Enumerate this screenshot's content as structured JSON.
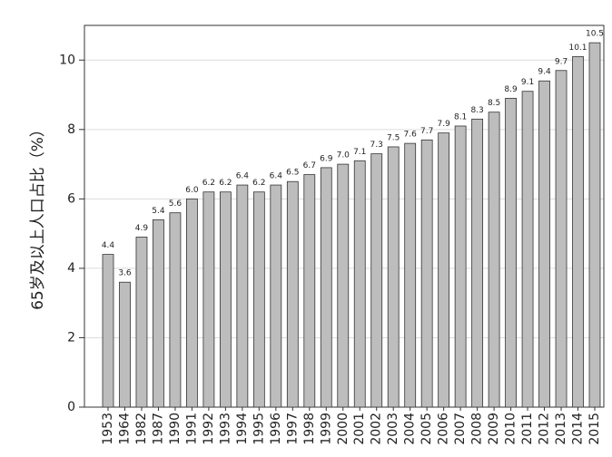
{
  "chart_data": {
    "type": "bar",
    "y_label": "65岁及以上人口占比（%）",
    "categories": [
      "1953",
      "1964",
      "1982",
      "1987",
      "1990",
      "1991",
      "1992",
      "1993",
      "1994",
      "1995",
      "1996",
      "1997",
      "1998",
      "1999",
      "2000",
      "2001",
      "2002",
      "2003",
      "2004",
      "2005",
      "2006",
      "2007",
      "2008",
      "2009",
      "2010",
      "2011",
      "2012",
      "2013",
      "2014",
      "2015"
    ],
    "values": [
      4.4,
      3.6,
      4.9,
      5.4,
      5.6,
      6.0,
      6.2,
      6.2,
      6.4,
      6.2,
      6.4,
      6.5,
      6.7,
      6.9,
      7.0,
      7.1,
      7.3,
      7.5,
      7.6,
      7.7,
      7.9,
      8.1,
      8.3,
      8.5,
      8.9,
      9.1,
      9.4,
      9.7,
      10.1,
      10.5
    ],
    "value_labels": [
      "4.4",
      "3.6",
      "4.9",
      "5.4",
      "5.6",
      "6.0",
      "6.2",
      "6.2",
      "6.4",
      "6.2",
      "6.4",
      "6.5",
      "6.7",
      "6.9",
      "7.0",
      "7.1",
      "7.3",
      "7.5",
      "7.6",
      "7.7",
      "7.9",
      "8.1",
      "8.3",
      "8.5",
      "8.9",
      "9.1",
      "9.4",
      "9.7",
      "10.1",
      "10.5"
    ],
    "color": "#bdbdbd",
    "ylim": [
      0,
      11
    ],
    "yticks": [
      0,
      2,
      4,
      6,
      8,
      10
    ],
    "grid": true
  }
}
